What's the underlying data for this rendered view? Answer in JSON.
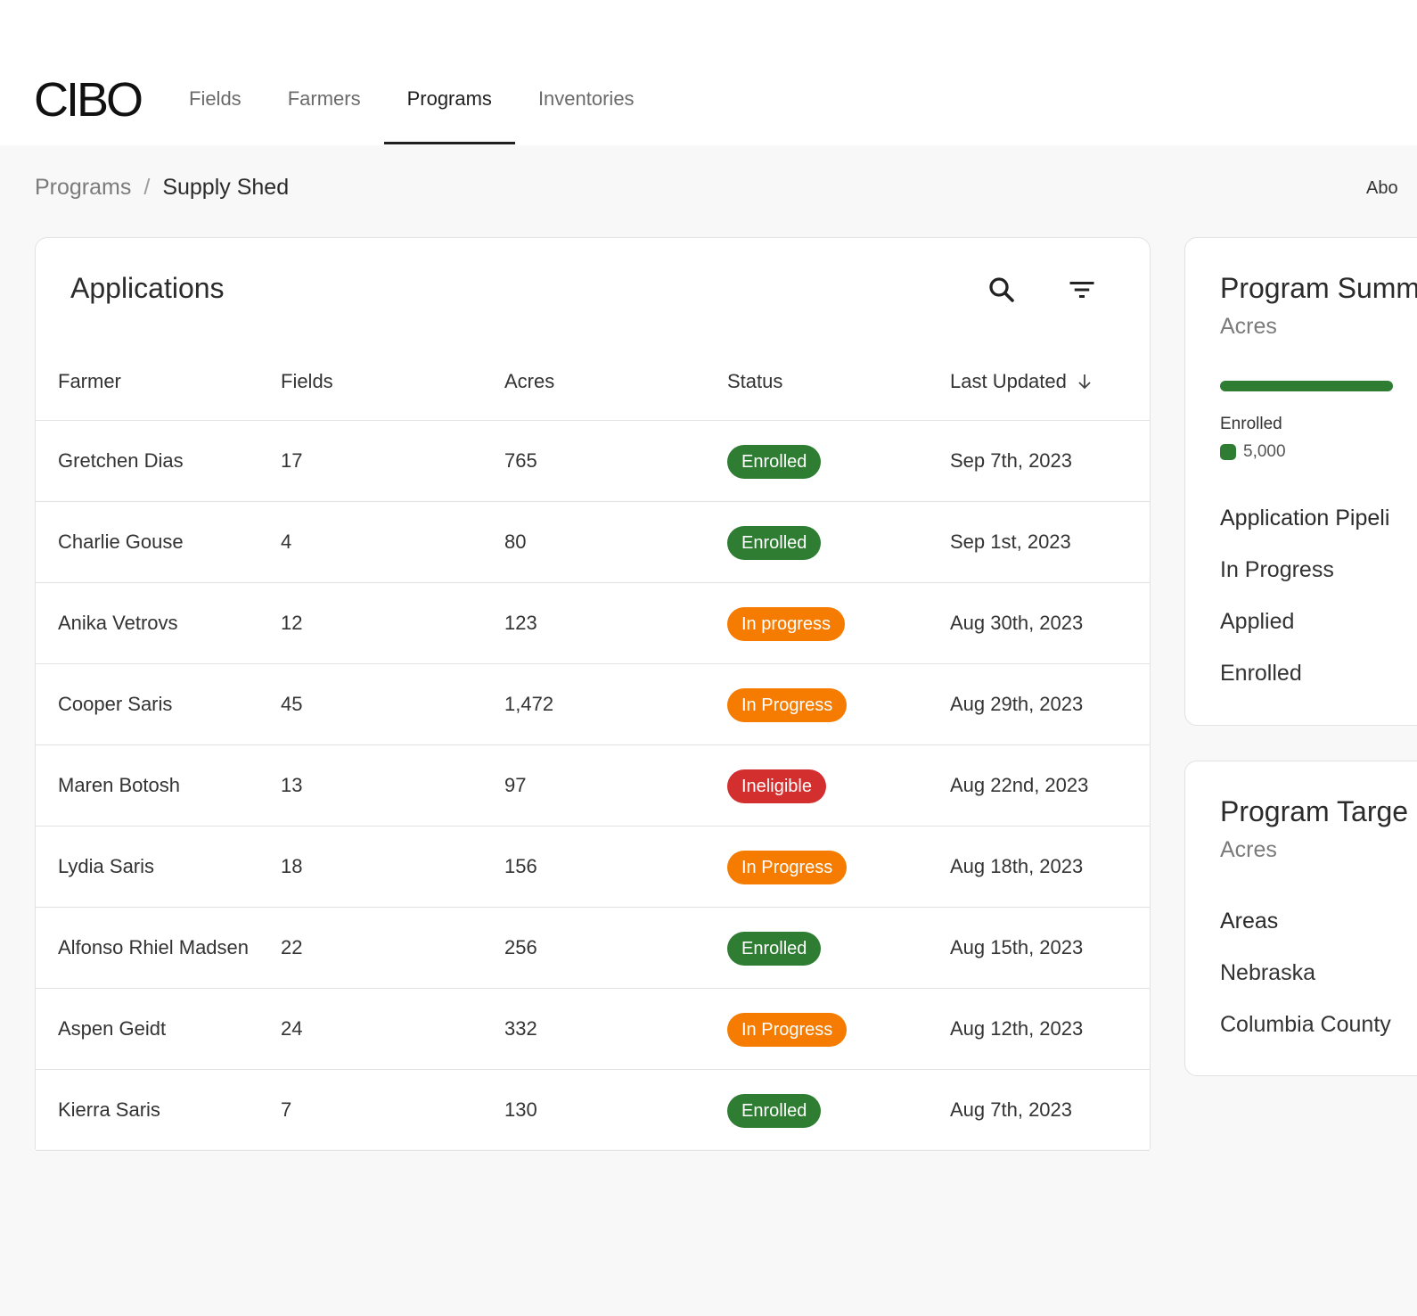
{
  "brand": {
    "logo_text": "CIBO"
  },
  "nav": {
    "items": [
      {
        "label": "Fields"
      },
      {
        "label": "Farmers"
      },
      {
        "label": "Programs"
      },
      {
        "label": "Inventories"
      }
    ],
    "active": "Programs"
  },
  "breadcrumb": {
    "parent": "Programs",
    "separator": "/",
    "current": "Supply Shed"
  },
  "header_right_link": "Abo",
  "applications": {
    "title": "Applications",
    "columns": [
      "Farmer",
      "Fields",
      "Acres",
      "Status",
      "Last Updated"
    ],
    "sort_column": "Last Updated",
    "sort_direction": "descending",
    "rows": [
      {
        "farmer": "Gretchen Dias",
        "fields": "17",
        "acres": "765",
        "status": "Enrolled",
        "status_type": "enrolled",
        "updated": "Sep 7th, 2023"
      },
      {
        "farmer": "Charlie Gouse",
        "fields": "4",
        "acres": "80",
        "status": "Enrolled",
        "status_type": "enrolled",
        "updated": "Sep 1st, 2023"
      },
      {
        "farmer": "Anika Vetrovs",
        "fields": "12",
        "acres": "123",
        "status": "In progress",
        "status_type": "progress",
        "updated": "Aug 30th, 2023"
      },
      {
        "farmer": "Cooper Saris",
        "fields": "45",
        "acres": "1,472",
        "status": "In Progress",
        "status_type": "progress",
        "updated": "Aug 29th, 2023"
      },
      {
        "farmer": "Maren Botosh",
        "fields": "13",
        "acres": "97",
        "status": "Ineligible",
        "status_type": "ineligible",
        "updated": "Aug 22nd, 2023"
      },
      {
        "farmer": "Lydia Saris",
        "fields": "18",
        "acres": "156",
        "status": "In Progress",
        "status_type": "progress",
        "updated": "Aug 18th, 2023"
      },
      {
        "farmer": "Alfonso Rhiel Madsen",
        "fields": "22",
        "acres": "256",
        "status": "Enrolled",
        "status_type": "enrolled",
        "updated": "Aug 15th, 2023"
      },
      {
        "farmer": "Aspen Geidt",
        "fields": "24",
        "acres": "332",
        "status": "In Progress",
        "status_type": "progress",
        "updated": "Aug 12th, 2023"
      },
      {
        "farmer": "Kierra Saris",
        "fields": "7",
        "acres": "130",
        "status": "Enrolled",
        "status_type": "enrolled",
        "updated": "Aug 7th, 2023"
      }
    ]
  },
  "program_summary": {
    "title": "Program Summ",
    "subtitle": "Acres",
    "legend_label": "Enrolled",
    "legend_value": "5,000",
    "pipeline_title": "Application Pipeli",
    "pipeline_items": [
      "In Progress",
      "Applied",
      "Enrolled"
    ]
  },
  "program_targets": {
    "title": "Program Targe",
    "subtitle": "Acres",
    "areas_title": "Areas",
    "areas": [
      "Nebraska",
      "Columbia County"
    ]
  },
  "colors": {
    "enrolled": "#2e7d32",
    "in_progress": "#f57c00",
    "ineligible": "#d32f2f",
    "page_background": "#f8f8f8"
  },
  "icons": {
    "search": "search-icon",
    "filter": "filter-icon",
    "sort": "arrow-down-icon"
  }
}
